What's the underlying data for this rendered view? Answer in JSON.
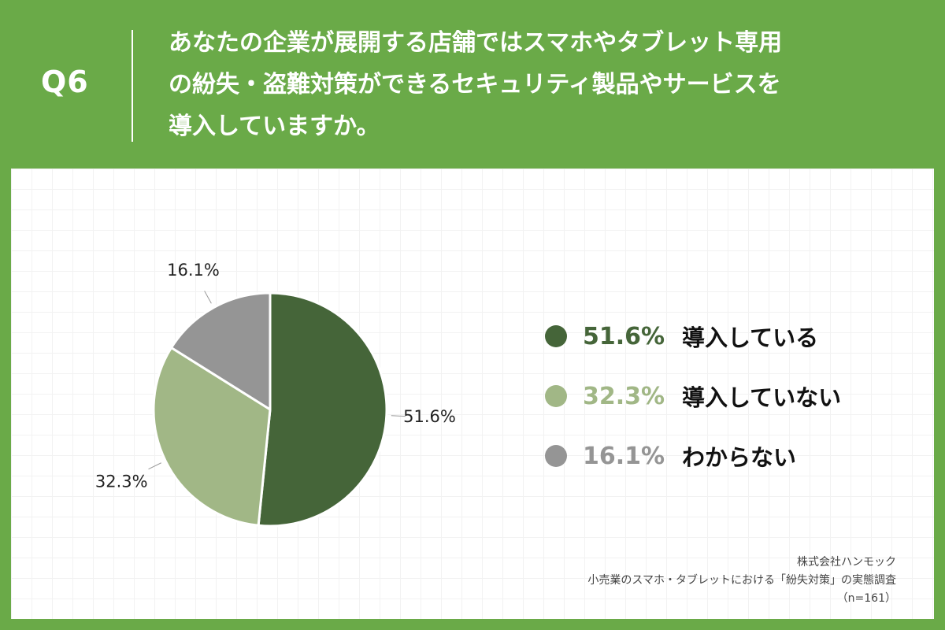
{
  "header": {
    "q_number": "Q6",
    "question_lines": [
      "あなたの企業が展開する店舗ではスマホやタブレット専用",
      "の紛失・盗難対策ができるセキュリティ製品やサービスを",
      "導入していますか。"
    ]
  },
  "colors": {
    "background": "#6aaa48",
    "panel": "#ffffff",
    "slice_1": "#456539",
    "slice_2": "#a1b786",
    "slice_3": "#959595"
  },
  "chart_data": {
    "type": "pie",
    "series": [
      {
        "name": "導入している",
        "value": 51.6,
        "label": "51.6%",
        "color": "#456539"
      },
      {
        "name": "導入していない",
        "value": 32.3,
        "label": "32.3%",
        "color": "#a1b786"
      },
      {
        "name": "わからない",
        "value": 16.1,
        "label": "16.1%",
        "color": "#959595"
      }
    ],
    "start": "12 o'clock",
    "direction": "clockwise",
    "legend_position": "right"
  },
  "footer": {
    "company": "株式会社ハンモック",
    "survey": "小売業のスマホ・タブレットにおける「紛失対策」の実態調査",
    "sample": "（n=161）"
  }
}
